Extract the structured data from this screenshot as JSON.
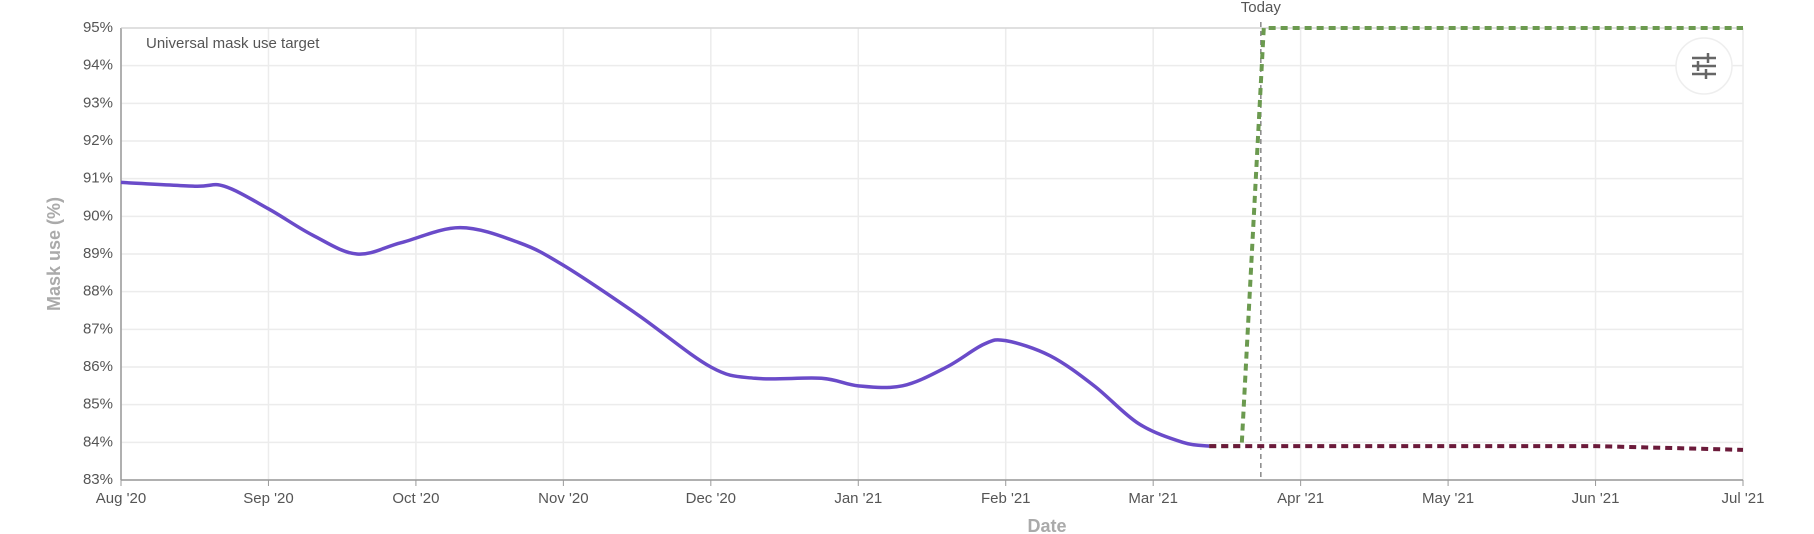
{
  "chart_data": {
    "type": "line",
    "x_label": "Date",
    "y_label": "Mask use (%)",
    "annotation": "Universal mask use target",
    "today_label": "Today",
    "today_x": 7.73,
    "xlim": [
      0,
      11
    ],
    "xticks": [
      {
        "value": 0,
        "label": "Aug '20"
      },
      {
        "value": 1,
        "label": "Sep '20"
      },
      {
        "value": 2,
        "label": "Oct '20"
      },
      {
        "value": 3,
        "label": "Nov '20"
      },
      {
        "value": 4,
        "label": "Dec '20"
      },
      {
        "value": 5,
        "label": "Jan '21"
      },
      {
        "value": 6,
        "label": "Feb '21"
      },
      {
        "value": 7,
        "label": "Mar '21"
      },
      {
        "value": 8,
        "label": "Apr '21"
      },
      {
        "value": 9,
        "label": "May '21"
      },
      {
        "value": 10,
        "label": "Jun '21"
      },
      {
        "value": 11,
        "label": "Jul '21"
      }
    ],
    "ylim": [
      83,
      95
    ],
    "yticks": [
      {
        "value": 83,
        "label": "83%"
      },
      {
        "value": 84,
        "label": "84%"
      },
      {
        "value": 85,
        "label": "85%"
      },
      {
        "value": 86,
        "label": "86%"
      },
      {
        "value": 87,
        "label": "87%"
      },
      {
        "value": 88,
        "label": "88%"
      },
      {
        "value": 89,
        "label": "89%"
      },
      {
        "value": 90,
        "label": "90%"
      },
      {
        "value": 91,
        "label": "91%"
      },
      {
        "value": 92,
        "label": "92%"
      },
      {
        "value": 93,
        "label": "93%"
      },
      {
        "value": 94,
        "label": "94%"
      },
      {
        "value": 95,
        "label": "95%"
      }
    ],
    "grid": true,
    "series": [
      {
        "color": "#6a4bc9",
        "dashed": false,
        "x": [
          0,
          0.5,
          0.7,
          1,
          1.3,
          1.6,
          1.9,
          2.3,
          2.7,
          3,
          3.5,
          4,
          4.3,
          4.75,
          5,
          5.3,
          5.6,
          5.85,
          6,
          6.3,
          6.6,
          6.9,
          7.2,
          7.38
        ],
        "values": [
          90.9,
          90.8,
          90.8,
          90.2,
          89.5,
          89.0,
          89.3,
          89.7,
          89.3,
          88.7,
          87.4,
          86.0,
          85.7,
          85.7,
          85.5,
          85.5,
          86.0,
          86.6,
          86.7,
          86.3,
          85.5,
          84.5,
          84.0,
          83.9
        ]
      },
      {
        "color": "#6b9a4f",
        "dashed": true,
        "x": [
          7.38,
          7.6,
          7.75,
          11
        ],
        "values": [
          83.9,
          83.9,
          95,
          95
        ]
      },
      {
        "color": "#6b1a3a",
        "dashed": true,
        "x": [
          7.38,
          10,
          11
        ],
        "values": [
          83.9,
          83.9,
          83.8
        ]
      }
    ]
  }
}
